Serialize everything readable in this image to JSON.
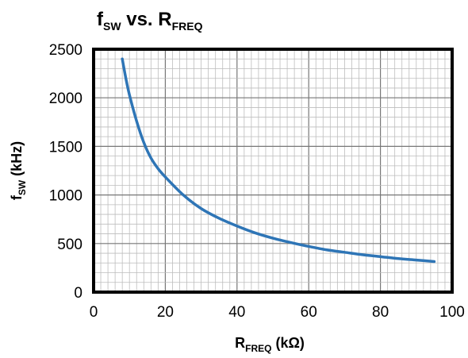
{
  "chart_data": {
    "type": "line",
    "title": {
      "main": "f",
      "sub": "SW",
      "rest": " vs. R",
      "sub2": "FREQ"
    },
    "xlabel": {
      "main": "R",
      "sub": "FREQ",
      "rest": " (kΩ)"
    },
    "ylabel": {
      "main": "f",
      "sub": "SW",
      "rest": " (kHz)"
    },
    "xlim": [
      0,
      100
    ],
    "ylim": [
      0,
      2500
    ],
    "x_ticks": [
      0,
      20,
      40,
      60,
      80,
      100
    ],
    "y_ticks": [
      0,
      500,
      1000,
      1500,
      2000,
      2500
    ],
    "x_tick_labels": [
      "0",
      "20",
      "40",
      "60",
      "80",
      "100"
    ],
    "y_tick_labels": [
      "0",
      "500",
      "1000",
      "1500",
      "2000",
      "2500"
    ],
    "grid": true,
    "series": [
      {
        "color": "#2e75b6",
        "x": [
          8,
          9,
          10,
          12,
          14,
          16,
          18,
          20,
          25,
          30,
          35,
          40,
          45,
          50,
          55,
          60,
          65,
          70,
          75,
          80,
          85,
          90,
          95
        ],
        "y": [
          2400,
          2200,
          2030,
          1760,
          1540,
          1380,
          1270,
          1185,
          1000,
          860,
          760,
          680,
          610,
          555,
          510,
          470,
          435,
          410,
          385,
          365,
          345,
          330,
          315
        ]
      }
    ]
  }
}
